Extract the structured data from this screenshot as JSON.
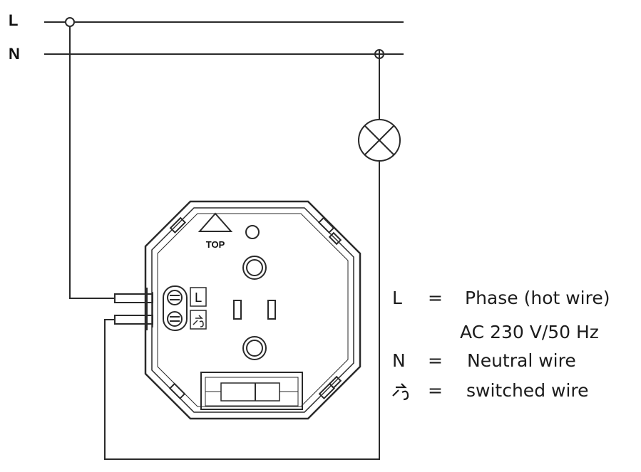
{
  "lines": {
    "phase_label": "L",
    "neutral_label": "N"
  },
  "device": {
    "top_marker": "TOP",
    "terminal_phase_symbol": "L",
    "terminal_switched_symbol": "switched-wire-icon"
  },
  "legend": {
    "items": [
      {
        "symbol": "L",
        "equals": "=",
        "text": "Phase (hot wire)"
      },
      {
        "symbol": "",
        "equals": "",
        "text": "AC 230 V/50 Hz"
      },
      {
        "symbol": "N",
        "equals": "=",
        "text": "Neutral wire"
      },
      {
        "symbol": "switched-wire-icon",
        "equals": "=",
        "text": "switched wire"
      }
    ]
  },
  "colors": {
    "wire": "#2a2a2a",
    "text": "#1c1c1c"
  }
}
